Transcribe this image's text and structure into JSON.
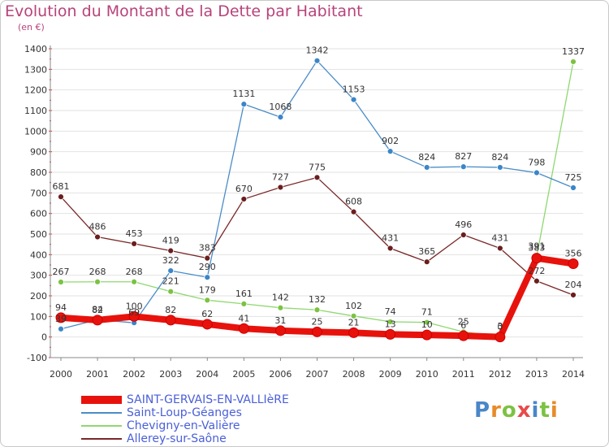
{
  "header": {
    "title": "Evolution du Montant de la Dette par Habitant",
    "subtitle": "(en €)"
  },
  "logo": {
    "text": "Proxiti",
    "colors": [
      "#4a86c8",
      "#e88a2a",
      "#7cc243",
      "#e84a4a",
      "#4a86c8",
      "#7cc243",
      "#e88a2a"
    ]
  },
  "chart_data": {
    "type": "line",
    "title": "Evolution du Montant de la Dette par Habitant",
    "subtitle": "(en €)",
    "xlabel": "",
    "ylabel": "",
    "ylim": [
      -100,
      1400
    ],
    "yticks": [
      -100,
      0,
      100,
      200,
      300,
      400,
      500,
      600,
      700,
      800,
      900,
      1000,
      1100,
      1200,
      1300,
      1400
    ],
    "x": [
      "2000",
      "2001",
      "2002",
      "2003",
      "2004",
      "2005",
      "2006",
      "2007",
      "2008",
      "2009",
      "2010",
      "2011",
      "2012",
      "2013",
      "2014"
    ],
    "grid": "horizontal",
    "legend_position": "bottom-left",
    "series": [
      {
        "name": "SAINT-GERVAIS-EN-VALLIèRE",
        "color": "#e8120c",
        "marker": "#e8120c",
        "values": [
          94,
          82,
          100,
          82,
          62,
          41,
          31,
          25,
          21,
          13,
          10,
          6,
          0,
          383,
          356
        ],
        "labels": [
          "94",
          "82",
          "100",
          "82",
          "62",
          "41",
          "31",
          "25",
          "21",
          "13",
          "10",
          "6",
          "0",
          "383",
          "356"
        ]
      },
      {
        "name": "Saint-Loup-Géanges",
        "color": "#4a8cc8",
        "marker": "#3a86c8",
        "values": [
          39,
          84,
          69,
          322,
          290,
          1131,
          1068,
          1342,
          1153,
          902,
          824,
          827,
          824,
          798,
          725
        ],
        "labels": [
          "39",
          "84",
          "69",
          "322",
          "290",
          "1131",
          "1068",
          "1342",
          "1153",
          "902",
          "824",
          "827",
          "824",
          "798",
          "725"
        ]
      },
      {
        "name": "Chevigny-en-Valière",
        "color": "#8fd870",
        "marker": "#7cc243",
        "values": [
          267,
          268,
          268,
          221,
          179,
          161,
          142,
          132,
          102,
          74,
          71,
          25,
          3,
          391,
          1337
        ],
        "labels": [
          "267",
          "268",
          "268",
          "221",
          "179",
          "161",
          "142",
          "132",
          "102",
          "74",
          "71",
          "25",
          "3",
          "391",
          "1337"
        ]
      },
      {
        "name": "Allerey-sur-Saône",
        "color": "#7a2828",
        "marker": "#6a1e1e",
        "values": [
          681,
          486,
          453,
          419,
          383,
          670,
          727,
          775,
          608,
          431,
          365,
          496,
          431,
          272,
          204
        ],
        "labels": [
          "681",
          "486",
          "453",
          "419",
          "383",
          "670",
          "727",
          "775",
          "608",
          "431",
          "365",
          "496",
          "431",
          "272",
          "204"
        ]
      }
    ]
  }
}
